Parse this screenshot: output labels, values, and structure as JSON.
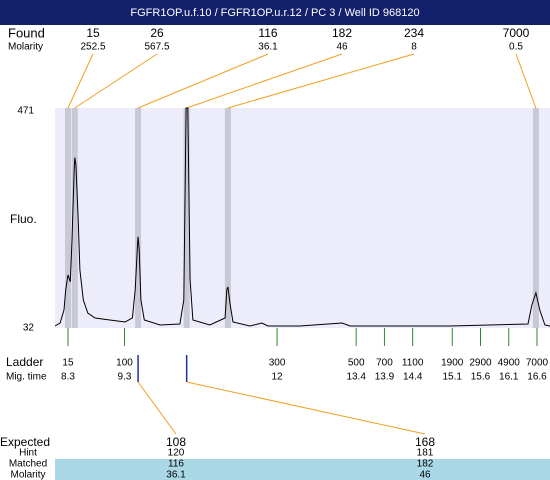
{
  "header": {
    "title": "FGFR1OP.u.f.10 / FGFR1OP.u.r.12 / PC 3 / Well ID 968120"
  },
  "chart_data": {
    "type": "line",
    "y_label": "Fluo.",
    "color": "#000000",
    "x": [
      8.07,
      8.16,
      8.23,
      8.26,
      8.3,
      8.34,
      8.37,
      8.41,
      8.42,
      8.44,
      8.48,
      8.51,
      8.57,
      8.65,
      8.78,
      9.04,
      9.31,
      9.44,
      9.49,
      9.53,
      9.54,
      9.56,
      9.59,
      9.65,
      9.93,
      10.28,
      10.35,
      10.39,
      10.42,
      10.46,
      10.51,
      10.81,
      11.08,
      11.11,
      11.13,
      11.17,
      11.22,
      11.52,
      11.73,
      11.84,
      12.4,
      13.15,
      13.29,
      15.06,
      16.44,
      16.51,
      16.58,
      16.65,
      16.74,
      16.83
    ],
    "values": [
      36,
      42,
      68,
      108,
      138,
      124,
      208,
      348,
      372,
      358,
      248,
      148,
      88,
      62,
      52,
      48,
      44,
      52,
      108,
      198,
      214,
      188,
      88,
      48,
      38,
      40,
      88,
      471,
      471,
      128,
      48,
      38,
      52,
      108,
      114,
      78,
      44,
      36,
      42,
      36,
      36,
      42,
      36,
      36,
      40,
      78,
      102,
      68,
      38,
      36
    ],
    "xlim": [
      8.07,
      16.83
    ],
    "ylim": [
      32,
      471
    ],
    "yticks": [
      32,
      471
    ],
    "found": {
      "label": "Found",
      "molarity_label": "Molarity",
      "sizes": [
        15,
        26,
        116,
        182,
        234,
        7000
      ],
      "molarity": [
        252.5,
        567.5,
        36.1,
        46,
        8,
        0.5
      ],
      "times": [
        8.3,
        8.42,
        9.54,
        10.4,
        11.13,
        16.58
      ]
    },
    "ladder": {
      "label": "Ladder",
      "time_label": "Mig. time",
      "sizes": [
        15,
        100,
        300,
        500,
        700,
        1100,
        1900,
        2900,
        4900,
        7000
      ],
      "times": [
        8.3,
        9.3,
        12,
        13.4,
        13.9,
        14.4,
        15.1,
        15.6,
        16.1,
        16.6
      ]
    }
  },
  "expected": {
    "label": "Expected",
    "hint_label": "Hint",
    "matched_label": "Matched",
    "molarity_label": "Molarity",
    "values": [
      108,
      168
    ],
    "hint": [
      120,
      181
    ],
    "matched": [
      116,
      182
    ],
    "molarity": [
      36.1,
      46
    ]
  }
}
